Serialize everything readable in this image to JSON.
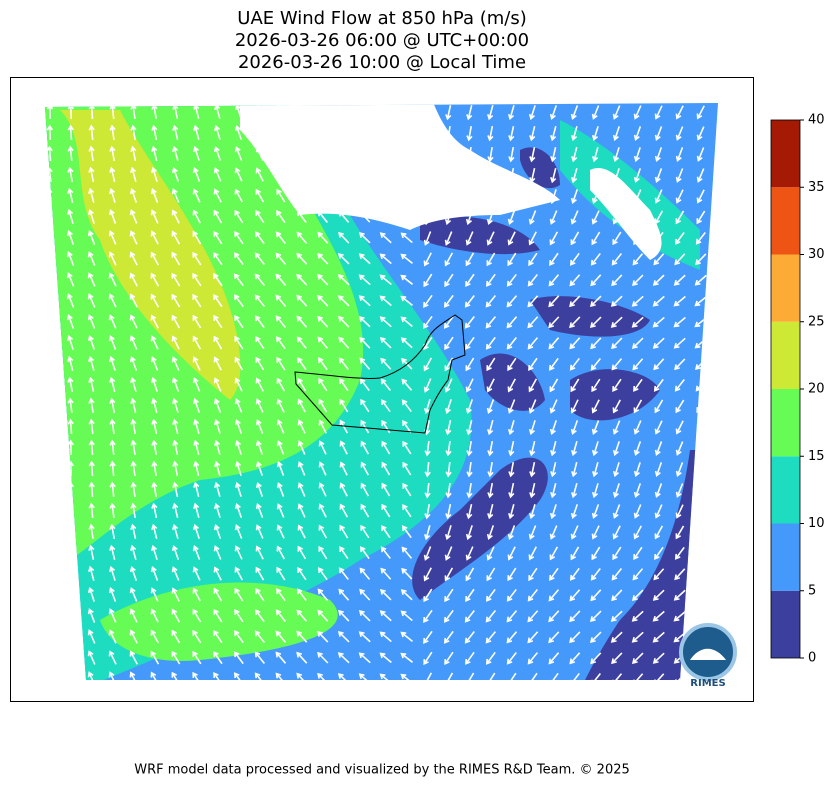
{
  "title": [
    "UAE Wind Flow at 850 hPa (m/s)",
    "2026-03-26 06:00 @ UTC+00:00",
    "2026-03-26 10:00 @ Local Time"
  ],
  "colorbar": {
    "levels": [
      0,
      5,
      10,
      15,
      20,
      25,
      30,
      35,
      40
    ],
    "colors": [
      "#3d3f9e",
      "#4499fb",
      "#1edcc0",
      "#66fb55",
      "#cde835",
      "#fdab37",
      "#ee5515",
      "#a51a04"
    ]
  },
  "logo": "RIMES",
  "footer": "WRF model data processed and visualized by the RIMES R&D Team. © 2025"
}
